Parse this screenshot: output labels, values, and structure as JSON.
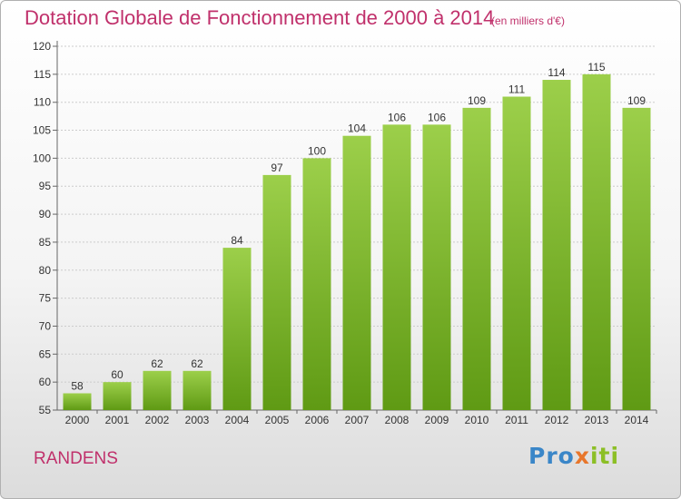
{
  "title": "Dotation Globale de Fonctionnement de 2000 à 2014",
  "title_unit": "(en milliers d'€)",
  "commune": "RANDENS",
  "logo": {
    "part1": "Pro",
    "part2": "x",
    "part3": "iti"
  },
  "colors": {
    "bar_top": "#9ccf4a",
    "bar_bottom": "#5f9a14",
    "title": "#c0306b",
    "grid": "#cccccc"
  },
  "chart_data": {
    "type": "bar",
    "title": "Dotation Globale de Fonctionnement de 2000 à 2014",
    "subtitle": "(en milliers d'€)",
    "xlabel": "",
    "ylabel": "",
    "categories": [
      "2000",
      "2001",
      "2002",
      "2003",
      "2004",
      "2005",
      "2006",
      "2007",
      "2008",
      "2009",
      "2010",
      "2011",
      "2012",
      "2013",
      "2014"
    ],
    "values": [
      58,
      60,
      62,
      62,
      84,
      97,
      100,
      104,
      106,
      106,
      109,
      111,
      114,
      115,
      109
    ],
    "ylim": [
      55,
      120
    ],
    "yticks": [
      55,
      60,
      65,
      70,
      75,
      80,
      85,
      90,
      95,
      100,
      105,
      110,
      115,
      120
    ],
    "grid": true,
    "legend": "none"
  }
}
